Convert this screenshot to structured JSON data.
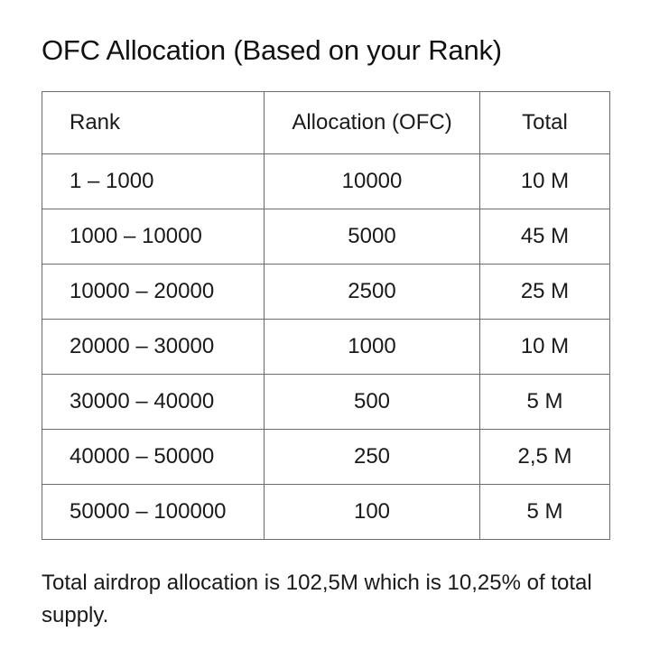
{
  "title": "OFC Allocation (Based on your Rank)",
  "table": {
    "headers": [
      "Rank",
      "Allocation (OFC)",
      "Total"
    ],
    "rows": [
      [
        "1 – 1000",
        "10000",
        "10 M"
      ],
      [
        "1000 – 10000",
        "5000",
        "45 M"
      ],
      [
        "10000 – 20000",
        "2500",
        "25 M"
      ],
      [
        "20000 – 30000",
        "1000",
        "10 M"
      ],
      [
        "30000 – 40000",
        "500",
        "5 M"
      ],
      [
        "40000 – 50000",
        "250",
        "2,5 M"
      ],
      [
        "50000 – 100000",
        "100",
        "5 M"
      ]
    ]
  },
  "footer": "Total airdrop allocation is 102,5M which is 10,25% of total supply."
}
